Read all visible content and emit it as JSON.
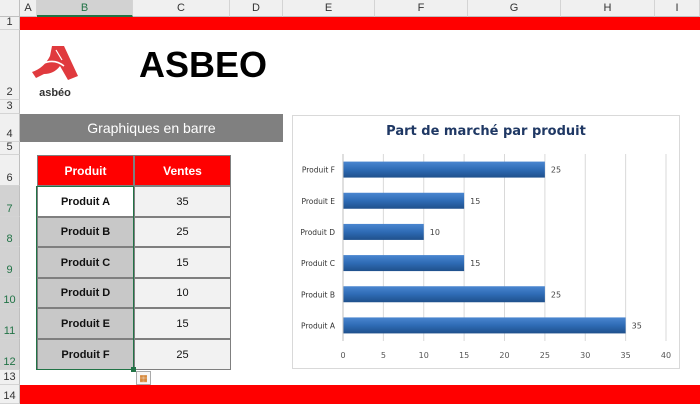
{
  "sheet": {
    "columns": [
      "A",
      "B",
      "C",
      "D",
      "E",
      "F",
      "G",
      "H",
      "I"
    ],
    "rows": [
      "1",
      "2",
      "3",
      "4",
      "5",
      "6",
      "7",
      "8",
      "9",
      "10",
      "11",
      "12",
      "13",
      "14"
    ],
    "selected_column": "B"
  },
  "logo": {
    "text": "asbéo",
    "color": "#e03a3e"
  },
  "title": "ASBEO",
  "banner": "Graphiques en barre",
  "table": {
    "headers": [
      "Produit",
      "Ventes"
    ],
    "rows": [
      [
        "Produit A",
        "35"
      ],
      [
        "Produit B",
        "25"
      ],
      [
        "Produit C",
        "15"
      ],
      [
        "Produit D",
        "10"
      ],
      [
        "Produit E",
        "15"
      ],
      [
        "Produit F",
        "25"
      ]
    ]
  },
  "colors": {
    "accent": "#ff0000",
    "banner": "#808080",
    "bar": "#2e6bb5",
    "chart_title": "#1f3864"
  },
  "chart_data": {
    "type": "bar",
    "orientation": "horizontal",
    "title": "Part de marché par produit",
    "categories": [
      "Produit A",
      "Produit B",
      "Produit C",
      "Produit D",
      "Produit E",
      "Produit F"
    ],
    "values": [
      35,
      25,
      15,
      10,
      15,
      25
    ],
    "xlim": [
      0,
      40
    ],
    "xticks": [
      "0",
      "5",
      "10",
      "15",
      "20",
      "25",
      "30",
      "35",
      "40"
    ],
    "grid": true,
    "data_labels": true
  }
}
